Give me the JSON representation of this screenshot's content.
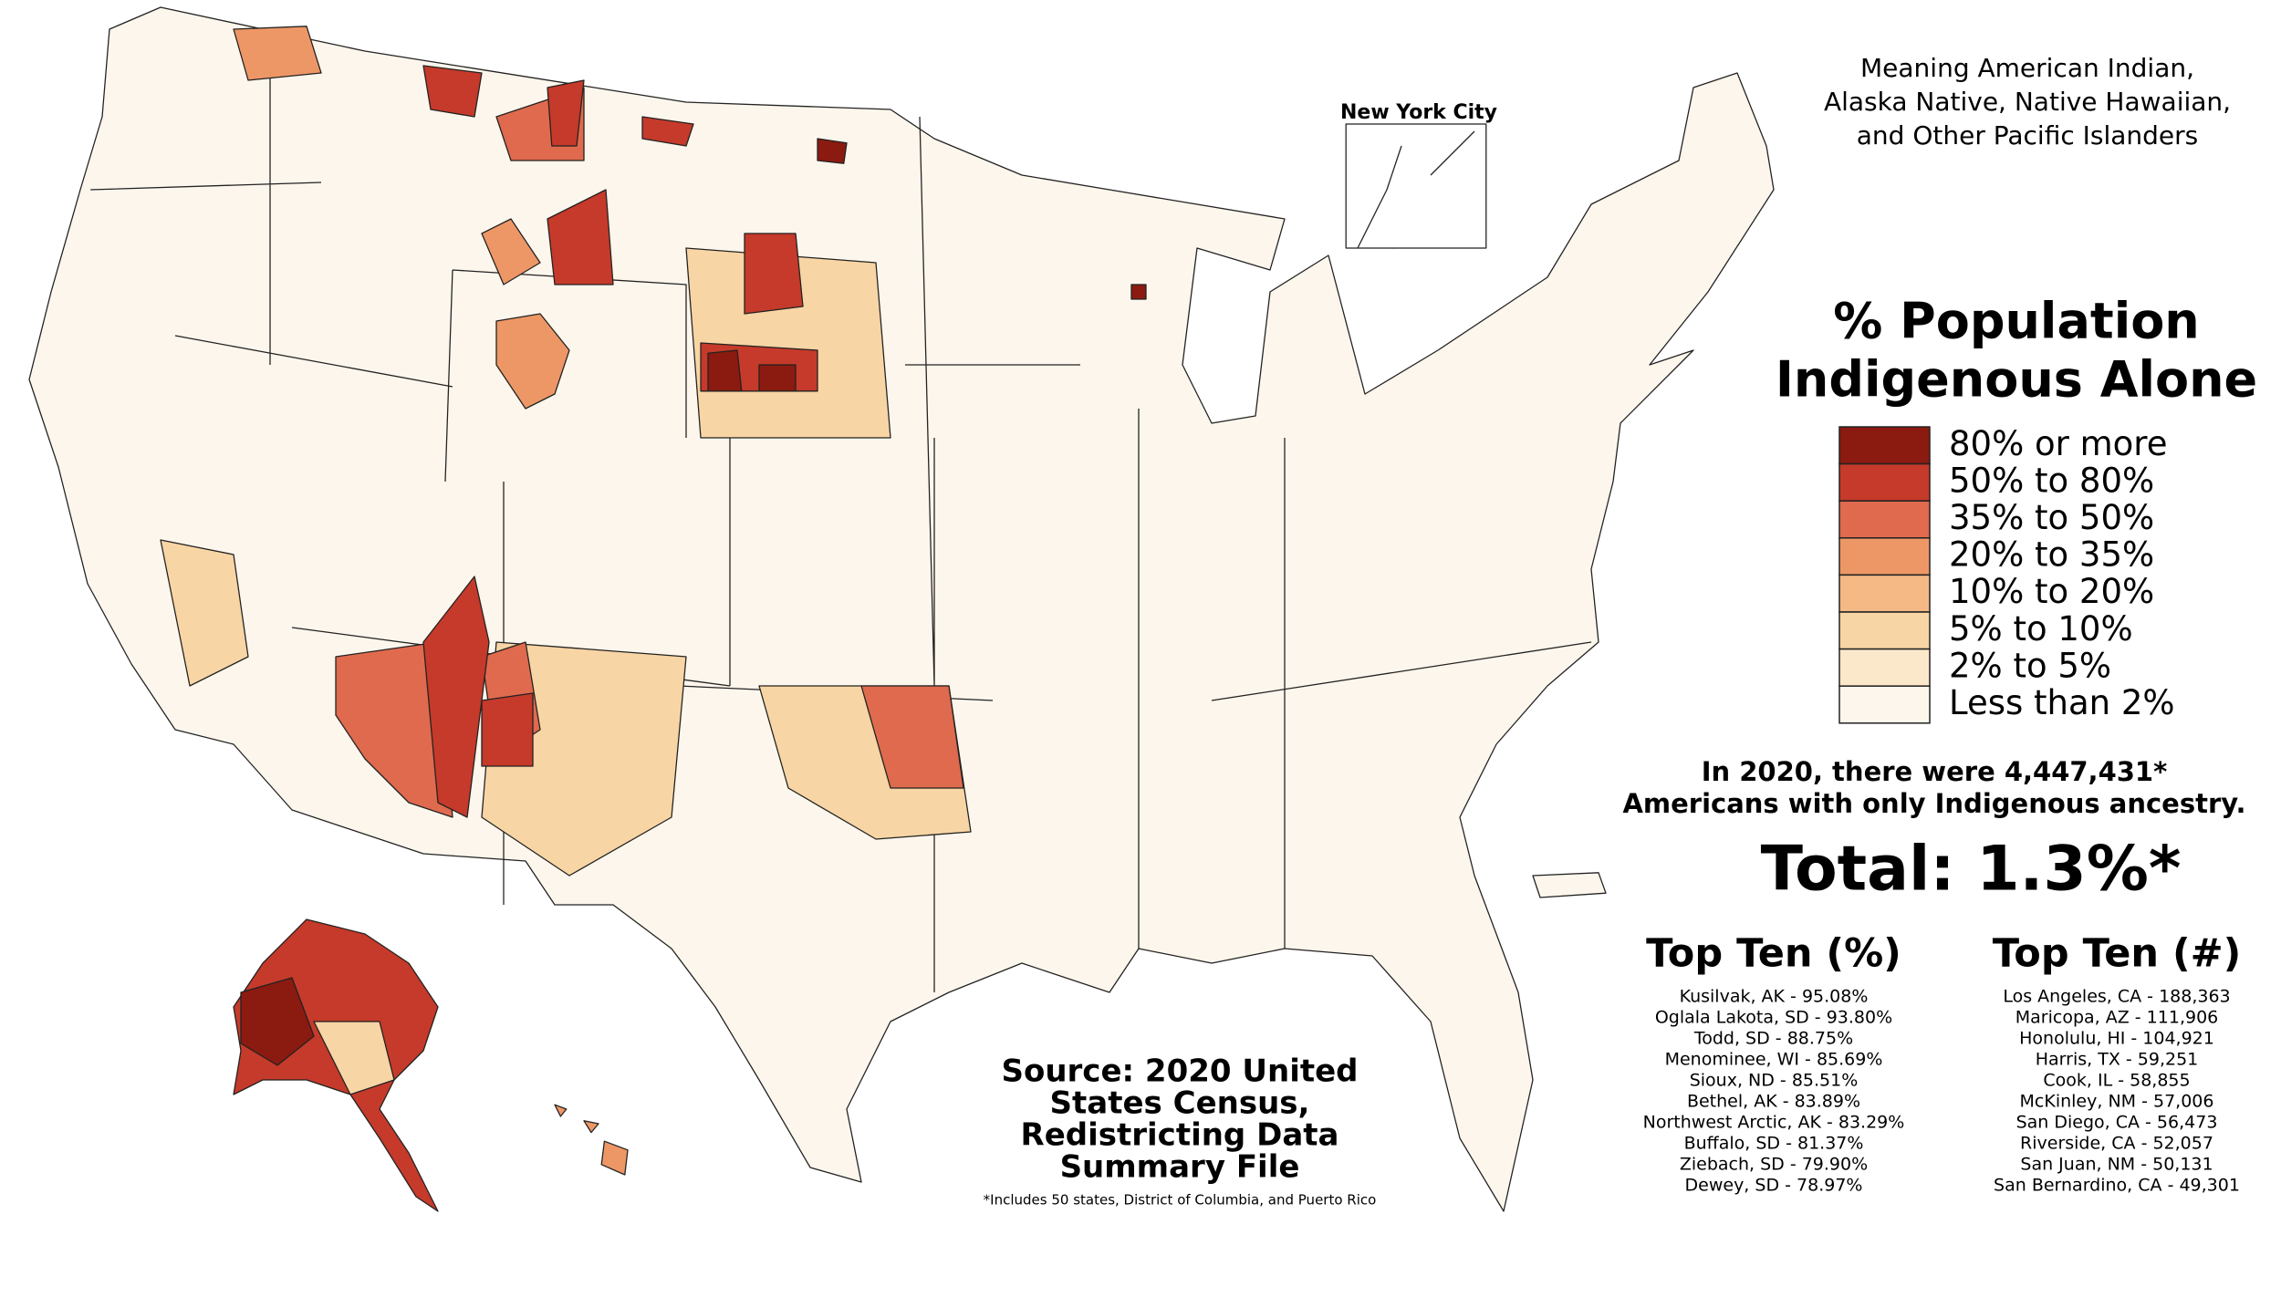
{
  "subtitle": [
    "Meaning American Indian,",
    "Alaska Native, Native Hawaiian,",
    "and Other Pacific Islanders"
  ],
  "inset_label": "New York City",
  "legend": {
    "title": [
      "% Population",
      "Indigenous Alone"
    ],
    "items": [
      {
        "label": "80% or more",
        "color": "#8b1a10"
      },
      {
        "label": "50% to 80%",
        "color": "#c53a2a"
      },
      {
        "label": "35% to 50%",
        "color": "#df6a4e"
      },
      {
        "label": "20% to 35%",
        "color": "#ee9766"
      },
      {
        "label": "10% to 20%",
        "color": "#f4b985"
      },
      {
        "label": "5% to 10%",
        "color": "#f8d5a4"
      },
      {
        "label": "2% to 5%",
        "color": "#fbe7ca"
      },
      {
        "label": "Less than 2%",
        "color": "#fdf6ec"
      }
    ]
  },
  "summary": [
    "In 2020, there were 4,447,431*",
    "Americans with only Indigenous ancestry."
  ],
  "total": "Total: 1.3%*",
  "top_percent": {
    "title": "Top Ten (%)",
    "items": [
      "Kusilvak, AK - 95.08%",
      "Oglala Lakota, SD - 93.80%",
      "Todd, SD - 88.75%",
      "Menominee, WI - 85.69%",
      "Sioux, ND - 85.51%",
      "Bethel, AK - 83.89%",
      "Northwest Arctic, AK - 83.29%",
      "Buffalo, SD - 81.37%",
      "Ziebach, SD - 79.90%",
      "Dewey, SD - 78.97%"
    ]
  },
  "top_count": {
    "title": "Top Ten (#)",
    "items": [
      "Los Angeles, CA - 188,363",
      "Maricopa, AZ - 111,906",
      "Honolulu, HI - 104,921",
      "Harris, TX - 59,251",
      "Cook, IL - 58,855",
      "McKinley, NM - 57,006",
      "San Diego, CA - 56,473",
      "Riverside, CA - 52,057",
      "San Juan, NM - 50,131",
      "San Bernardino, CA - 49,301"
    ]
  },
  "source": [
    "Source: 2020 United",
    "States Census,",
    "Redistricting Data",
    "Summary File"
  ],
  "footnote": "*Includes 50 states, District of Columbia, and Puerto Rico"
}
